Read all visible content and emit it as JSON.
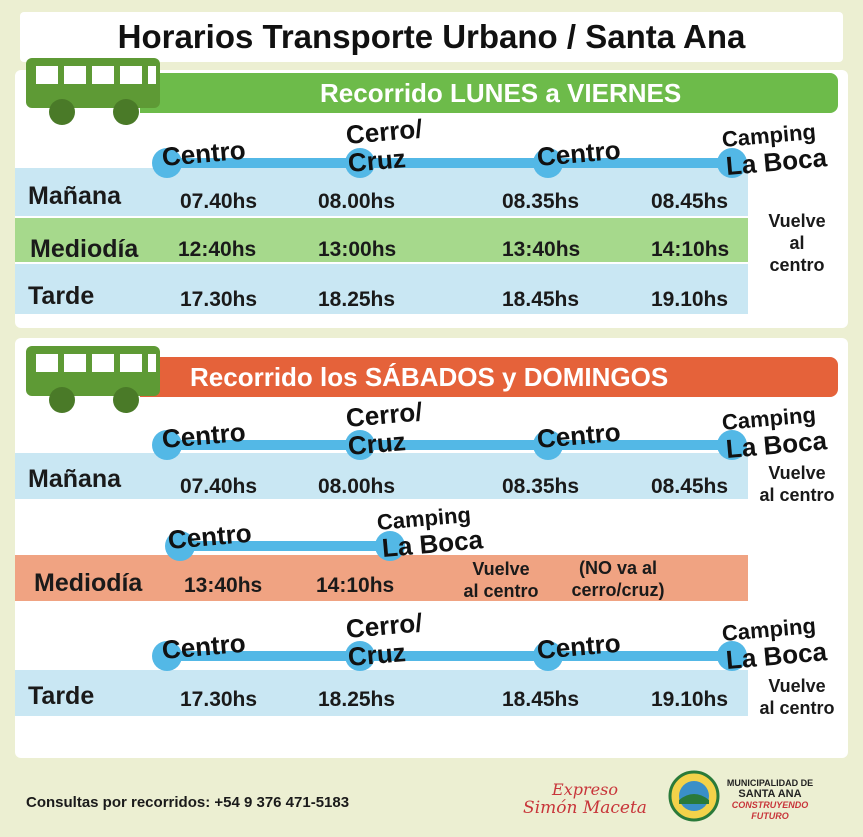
{
  "title": "Horarios Transporte Urbano / Santa Ana",
  "colors": {
    "green": "#6dbb4a",
    "orange": "#e5623a",
    "blue_band": "#c9e7f3",
    "green_band": "#a6d98c",
    "orange_band": "#f0a382",
    "line": "#53b8e6",
    "bus": "#5e9a35"
  },
  "weekday": {
    "banner": "Recorrido LUNES a VIERNES",
    "stops": [
      "Centro",
      "Cerro/",
      "Cruz",
      "Centro",
      "Camping",
      "La Boca"
    ],
    "rows": [
      {
        "label": "Mañana",
        "times": [
          "07.40hs",
          "08.00hs",
          "08.35hs",
          "08.45hs"
        ]
      },
      {
        "label": "Mediodía",
        "times": [
          "12:40hs",
          "13:00hs",
          "13:40hs",
          "14:10hs"
        ]
      },
      {
        "label": "Tarde",
        "times": [
          "17.30hs",
          "18.25hs",
          "18.45hs",
          "19.10hs"
        ]
      }
    ],
    "note": [
      "Vuelve",
      "al",
      "centro"
    ]
  },
  "weekend": {
    "banner": "Recorrido los SÁBADOS y DOMINGOS",
    "morning": {
      "stops": [
        "Centro",
        "Cerro/",
        "Cruz",
        "Centro",
        "Camping",
        "La Boca"
      ],
      "label": "Mañana",
      "times": [
        "07.40hs",
        "08.00hs",
        "08.35hs",
        "08.45hs"
      ],
      "note": [
        "Vuelve",
        "al centro"
      ]
    },
    "midday": {
      "stops": [
        "Centro",
        "Camping",
        "La Boca"
      ],
      "label": "Mediodía",
      "times": [
        "13:40hs",
        "14:10hs"
      ],
      "note1": [
        "Vuelve",
        "al centro"
      ],
      "note2": [
        "(NO va al",
        "cerro/cruz)"
      ]
    },
    "afternoon": {
      "stops": [
        "Centro",
        "Cerro/",
        "Cruz",
        "Centro",
        "Camping",
        "La Boca"
      ],
      "label": "Tarde",
      "times": [
        "17.30hs",
        "18.25hs",
        "18.45hs",
        "19.10hs"
      ],
      "note": [
        "Vuelve",
        "al centro"
      ]
    }
  },
  "footer": {
    "contact": "Consultas por recorridos: +54 9 376 471-5183",
    "brand": [
      "Expreso",
      "Simón Maceta"
    ],
    "muni": [
      "MUNICIPALIDAD DE",
      "SANTA ANA",
      "CONSTRUYENDO",
      "FUTURO"
    ]
  }
}
